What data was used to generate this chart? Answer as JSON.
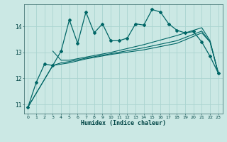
{
  "title": "",
  "xlabel": "Humidex (Indice chaleur)",
  "bg_color": "#cbe8e4",
  "grid_color": "#aad4d0",
  "line_color": "#006666",
  "xlim": [
    -0.5,
    23.5
  ],
  "ylim": [
    10.65,
    14.85
  ],
  "xticks": [
    0,
    1,
    2,
    3,
    4,
    5,
    6,
    7,
    8,
    9,
    10,
    11,
    12,
    13,
    14,
    15,
    16,
    17,
    18,
    19,
    20,
    21,
    22,
    23
  ],
  "yticks": [
    11,
    12,
    13,
    14
  ],
  "spiky_line": [
    [
      0,
      10.9
    ],
    [
      1,
      11.85
    ],
    [
      2,
      12.55
    ],
    [
      3,
      12.5
    ],
    [
      4,
      13.05
    ],
    [
      5,
      14.25
    ],
    [
      6,
      13.35
    ],
    [
      7,
      14.55
    ],
    [
      8,
      13.75
    ],
    [
      9,
      14.1
    ],
    [
      10,
      13.45
    ],
    [
      11,
      13.45
    ],
    [
      12,
      13.55
    ],
    [
      13,
      14.1
    ],
    [
      14,
      14.05
    ],
    [
      15,
      14.65
    ],
    [
      16,
      14.55
    ],
    [
      17,
      14.1
    ],
    [
      18,
      13.85
    ],
    [
      19,
      13.75
    ],
    [
      20,
      13.8
    ],
    [
      21,
      13.4
    ],
    [
      22,
      12.85
    ],
    [
      23,
      12.2
    ]
  ],
  "trend_line1": [
    [
      0,
      10.9
    ],
    [
      3,
      12.5
    ],
    [
      4,
      12.55
    ],
    [
      5,
      12.6
    ],
    [
      7,
      12.75
    ],
    [
      10,
      12.92
    ],
    [
      14,
      13.1
    ],
    [
      18,
      13.35
    ],
    [
      21,
      13.75
    ],
    [
      22,
      13.4
    ],
    [
      23,
      12.2
    ]
  ],
  "trend_line2": [
    [
      0,
      10.9
    ],
    [
      3,
      12.5
    ],
    [
      4,
      12.6
    ],
    [
      5,
      12.65
    ],
    [
      7,
      12.78
    ],
    [
      10,
      12.95
    ],
    [
      14,
      13.18
    ],
    [
      18,
      13.45
    ],
    [
      21,
      13.82
    ],
    [
      22,
      13.4
    ],
    [
      23,
      12.2
    ]
  ],
  "trend_line3": [
    [
      3,
      13.05
    ],
    [
      4,
      12.7
    ],
    [
      5,
      12.7
    ],
    [
      7,
      12.82
    ],
    [
      10,
      13.0
    ],
    [
      14,
      13.3
    ],
    [
      18,
      13.65
    ],
    [
      20,
      13.85
    ],
    [
      21,
      13.95
    ],
    [
      22,
      13.45
    ],
    [
      23,
      12.2
    ]
  ]
}
